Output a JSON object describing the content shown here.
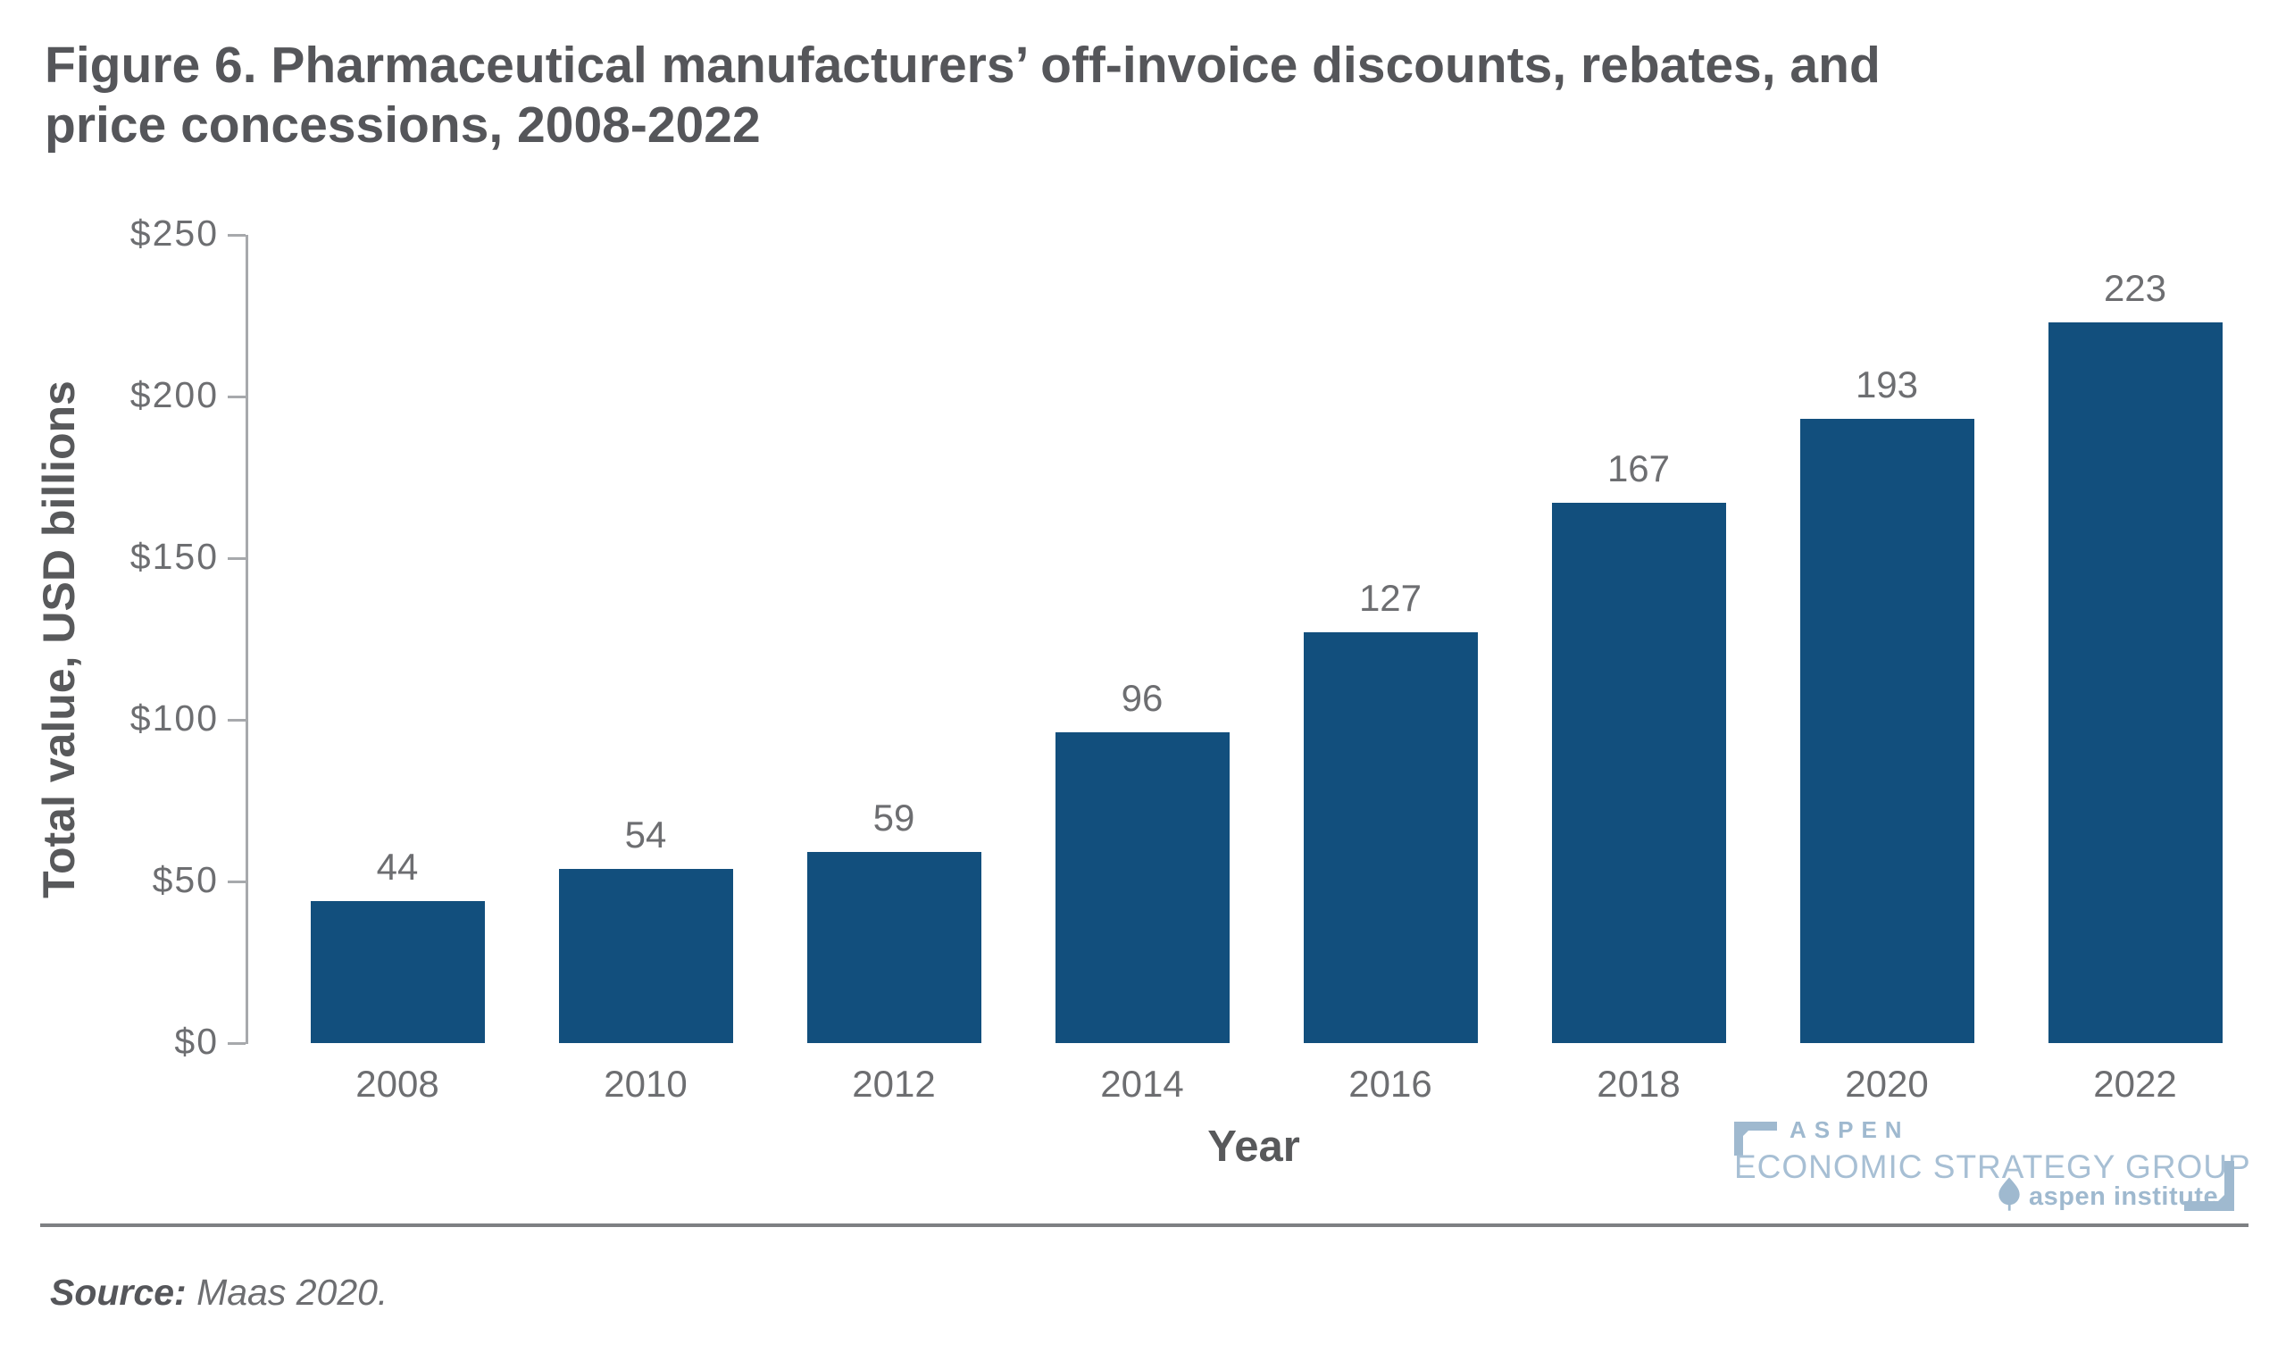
{
  "figure": {
    "title_line1": "Figure 6. Pharmaceutical manufacturers’ off-invoice discounts, rebates, and",
    "title_line2": "price concessions, 2008-2022",
    "source_label": "Source:",
    "source_text": "Maas 2020."
  },
  "chart_data": {
    "type": "bar",
    "title": "Figure 6. Pharmaceutical manufacturers’ off-invoice discounts, rebates, and price concessions, 2008-2022",
    "categories": [
      "2008",
      "2010",
      "2012",
      "2014",
      "2016",
      "2018",
      "2020",
      "2022"
    ],
    "values": [
      44,
      54,
      59,
      96,
      127,
      167,
      193,
      223
    ],
    "value_labels": [
      "44",
      "54",
      "59",
      "96",
      "127",
      "167",
      "193",
      "223"
    ],
    "xlabel": "Year",
    "ylabel": "Total value, USD billions",
    "ylim": [
      0,
      250
    ],
    "yticks": [
      0,
      50,
      100,
      150,
      200,
      250
    ],
    "ytick_labels": [
      "$0",
      "$50",
      "$100",
      "$150",
      "$200",
      "$250"
    ],
    "grid": false,
    "legend_position": "none",
    "bar_color": "#124F7D",
    "label_color": "#6D6E71"
  },
  "logo": {
    "aspen": "ASPEN",
    "group": "ECONOMIC STRATEGY GROUP",
    "institute": "aspen institute",
    "color": "#A4BDD2"
  },
  "colors": {
    "title_text": "#55565A",
    "axis_text": "#6D6E71",
    "axis_line": "#A7A9AC",
    "bar": "#124F7D",
    "divider": "#7E8083",
    "background": "#FFFFFF"
  }
}
